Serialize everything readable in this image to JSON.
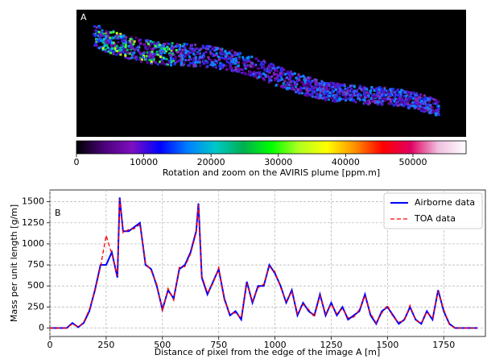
{
  "chart_data": [
    {
      "type": "image",
      "label": "A",
      "xlabel": "Rotation and zoom on the AVIRIS plume [ppm.m]",
      "clim": [
        0,
        57900
      ],
      "xticks": [
        0,
        10000,
        20000,
        30000,
        40000,
        50000
      ],
      "colormap": [
        "#000000",
        "#4b007a",
        "#7d0fc0",
        "#0000ff",
        "#0080ff",
        "#00c8c8",
        "#00b050",
        "#00ff00",
        "#b0ff20",
        "#ffff00",
        "#ff9000",
        "#ff0000",
        "#e00060",
        "#f0c0e0",
        "#ffffff"
      ]
    },
    {
      "type": "line",
      "label": "B",
      "xlabel": "Distance of pixel from the edge of the image A [m]",
      "ylabel": "Mass per unit length [g/m]",
      "x": [
        0,
        25,
        50,
        75,
        100,
        125,
        150,
        175,
        200,
        225,
        250,
        275,
        300,
        310,
        325,
        350,
        375,
        400,
        425,
        450,
        475,
        500,
        525,
        550,
        575,
        600,
        625,
        650,
        660,
        675,
        700,
        725,
        750,
        775,
        800,
        825,
        850,
        875,
        900,
        925,
        950,
        975,
        1000,
        1025,
        1050,
        1075,
        1100,
        1125,
        1150,
        1175,
        1200,
        1225,
        1250,
        1275,
        1300,
        1325,
        1350,
        1375,
        1400,
        1425,
        1450,
        1475,
        1500,
        1525,
        1550,
        1575,
        1600,
        1625,
        1650,
        1675,
        1700,
        1725,
        1750,
        1775,
        1800,
        1825,
        1850,
        1875,
        1900
      ],
      "series": [
        {
          "name": "Airborne data",
          "color": "#0000ff",
          "dash": false,
          "values": [
            0,
            0,
            0,
            0,
            60,
            10,
            60,
            200,
            450,
            750,
            750,
            900,
            600,
            1550,
            1150,
            1150,
            1200,
            1250,
            750,
            700,
            500,
            220,
            450,
            350,
            700,
            750,
            900,
            1150,
            1480,
            600,
            400,
            550,
            700,
            350,
            150,
            200,
            100,
            550,
            300,
            500,
            500,
            750,
            650,
            500,
            300,
            450,
            150,
            300,
            200,
            150,
            400,
            150,
            300,
            150,
            250,
            100,
            150,
            200,
            400,
            150,
            50,
            200,
            250,
            150,
            50,
            100,
            250,
            100,
            50,
            200,
            100,
            450,
            200,
            50,
            0,
            0,
            0,
            0,
            0
          ]
        },
        {
          "name": "TOA data",
          "color": "#ff0000",
          "dash": true,
          "values": [
            0,
            0,
            0,
            0,
            50,
            10,
            70,
            220,
            430,
            730,
            1100,
            880,
            620,
            1530,
            1130,
            1170,
            1180,
            1230,
            770,
            680,
            520,
            200,
            470,
            330,
            720,
            730,
            880,
            1130,
            1460,
            620,
            420,
            530,
            720,
            330,
            170,
            180,
            120,
            530,
            320,
            480,
            520,
            730,
            670,
            480,
            320,
            430,
            170,
            280,
            220,
            130,
            380,
            170,
            280,
            170,
            230,
            120,
            130,
            220,
            380,
            170,
            60,
            180,
            270,
            130,
            70,
            90,
            270,
            90,
            60,
            190,
            120,
            430,
            220,
            40,
            0,
            0,
            0,
            0,
            0
          ]
        }
      ],
      "xlim": [
        0,
        1935
      ],
      "ylim": [
        -100,
        1640
      ],
      "xticks": [
        0,
        250,
        500,
        750,
        1000,
        1250,
        1500,
        1750
      ],
      "yticks": [
        0,
        250,
        500,
        750,
        1000,
        1250,
        1500
      ],
      "grid": true,
      "legend": "upper right"
    }
  ]
}
